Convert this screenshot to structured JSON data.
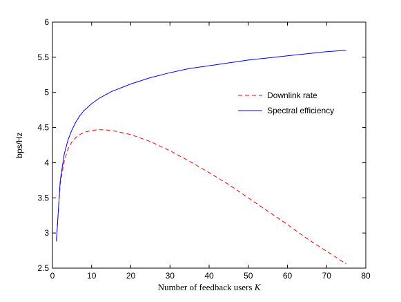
{
  "chart_data": {
    "type": "line",
    "xlabel": "Number of feedback users K",
    "xlabel_main": "Number of feedback users ",
    "xlabel_var": "K",
    "ylabel": "bps/Hz",
    "xlim": [
      0,
      80
    ],
    "ylim": [
      2.5,
      6
    ],
    "xticks": [
      0,
      10,
      20,
      30,
      40,
      50,
      60,
      70,
      80
    ],
    "yticks": [
      2.5,
      3,
      3.5,
      4,
      4.5,
      5,
      5.5,
      6
    ],
    "xtick_labels": [
      "0",
      "10",
      "20",
      "30",
      "40",
      "50",
      "60",
      "70",
      "80"
    ],
    "ytick_labels": [
      "2.5",
      "3",
      "3.5",
      "4",
      "4.5",
      "5",
      "5.5",
      "6"
    ],
    "grid": false,
    "legend_position": "right",
    "series": [
      {
        "name": "Downlink rate",
        "color": "#ff0000",
        "style": "dashed",
        "x": [
          1,
          2,
          3,
          4,
          5,
          6,
          7,
          8,
          10,
          12,
          15,
          20,
          25,
          30,
          35,
          40,
          45,
          50,
          55,
          60,
          65,
          70,
          75
        ],
        "y": [
          2.9,
          3.7,
          4.02,
          4.2,
          4.3,
          4.36,
          4.4,
          4.43,
          4.46,
          4.47,
          4.46,
          4.4,
          4.3,
          4.17,
          4.02,
          3.86,
          3.69,
          3.5,
          3.31,
          3.12,
          2.92,
          2.74,
          2.56
        ]
      },
      {
        "name": "Spectral efficiency",
        "color": "#0000ff",
        "style": "solid",
        "x": [
          1,
          2,
          3,
          4,
          5,
          6,
          7,
          8,
          10,
          12,
          15,
          20,
          25,
          30,
          35,
          40,
          45,
          50,
          55,
          60,
          65,
          70,
          75
        ],
        "y": [
          2.88,
          3.75,
          4.12,
          4.33,
          4.47,
          4.58,
          4.67,
          4.74,
          4.84,
          4.92,
          5.01,
          5.12,
          5.21,
          5.28,
          5.34,
          5.38,
          5.42,
          5.46,
          5.49,
          5.52,
          5.55,
          5.58,
          5.6
        ]
      }
    ]
  }
}
